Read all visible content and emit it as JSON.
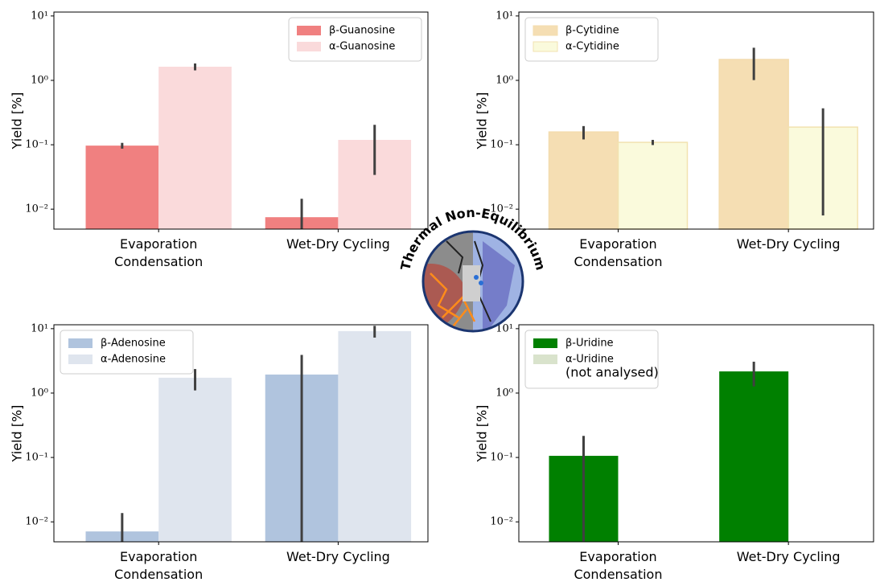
{
  "chart_data": [
    {
      "type": "bar",
      "ylabel": "Yield [%]",
      "log_y": true,
      "legend": "upper right",
      "categories": [
        "Evaporation\nCondensation",
        "Wet-Dry Cycling"
      ],
      "ylim": [
        0.0049,
        11.5
      ],
      "yticks": [
        {
          "value": 0.01,
          "label": "10⁻²"
        },
        {
          "value": 0.1,
          "label": "10⁻¹"
        },
        {
          "value": 1,
          "label": "10⁰"
        },
        {
          "value": 10,
          "label": "10¹"
        }
      ],
      "series": [
        {
          "name": "β-Guanosine",
          "color": "#f08080",
          "values": [
            0.097,
            0.0075
          ],
          "errors": [
            0.01,
            0.007
          ]
        },
        {
          "name": "α-Guanosine",
          "color": "#fadadb",
          "values": [
            1.63,
            0.119
          ],
          "errors": [
            0.2,
            0.085
          ]
        }
      ]
    },
    {
      "type": "bar",
      "ylabel": "Yield [%]",
      "log_y": true,
      "legend": "upper left",
      "categories": [
        "Evaporation\nCondensation",
        "Wet-Dry Cycling"
      ],
      "ylim": [
        0.0049,
        11.5
      ],
      "yticks": [
        {
          "value": 0.01,
          "label": "10⁻²"
        },
        {
          "value": 0.1,
          "label": "10⁻¹"
        },
        {
          "value": 1,
          "label": "10⁰"
        },
        {
          "value": 10,
          "label": "10¹"
        }
      ],
      "series": [
        {
          "name": "β-Cytidine",
          "color": "#f5deb3",
          "edgecolor": "#f3dcae",
          "values": [
            0.158,
            2.11
          ],
          "errors": [
            0.037,
            1.1
          ]
        },
        {
          "name": "α-Cytidine",
          "color": "#fafadc",
          "edgecolor": "#f2e2b0",
          "values": [
            0.109,
            0.188
          ],
          "errors": [
            0.01,
            0.18
          ]
        }
      ]
    },
    {
      "type": "bar",
      "ylabel": "Yield [%]",
      "log_y": true,
      "legend": "upper left",
      "categories": [
        "Evaporation\nCondensation",
        "Wet-Dry Cycling"
      ],
      "ylim": [
        0.0049,
        11.5
      ],
      "yticks": [
        {
          "value": 0.01,
          "label": "10⁻²"
        },
        {
          "value": 0.1,
          "label": "10⁻¹"
        },
        {
          "value": 1,
          "label": "10⁰"
        },
        {
          "value": 10,
          "label": "10¹"
        }
      ],
      "series": [
        {
          "name": "β-Adenosine",
          "color": "#b0c4de",
          "values": [
            0.0071,
            1.94
          ],
          "errors": [
            0.0066,
            1.98
          ]
        },
        {
          "name": "α-Adenosine",
          "color": "#dfe5ee",
          "values": [
            1.73,
            9.17
          ],
          "errors": [
            0.63,
            1.9
          ]
        }
      ]
    },
    {
      "type": "bar",
      "ylabel": "Yield [%]",
      "log_y": true,
      "legend": "upper left",
      "categories": [
        "Evaporation\nCondensation",
        "Wet-Dry Cycling"
      ],
      "ylim": [
        0.0049,
        11.5
      ],
      "yticks": [
        {
          "value": 0.01,
          "label": "10⁻²"
        },
        {
          "value": 0.1,
          "label": "10⁻¹"
        },
        {
          "value": 1,
          "label": "10⁰"
        },
        {
          "value": 10,
          "label": "10¹"
        }
      ],
      "series": [
        {
          "name": "β-Uridine",
          "color": "#008000",
          "values": [
            0.106,
            2.17
          ],
          "errors": [
            0.11,
            0.9
          ]
        },
        {
          "name": "α-Uridine",
          "note": "(not analysed)",
          "color": "#d9e3cc",
          "values": [
            null,
            null
          ],
          "errors": [
            null,
            null
          ]
        }
      ]
    }
  ],
  "logo": {
    "text": "Thermal Non-Equilibrium"
  }
}
